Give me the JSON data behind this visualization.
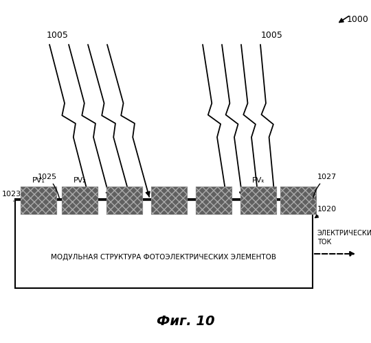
{
  "title": "Фиг. 10",
  "figure_label": "1000",
  "light_label": "1005",
  "label_1023": "1023",
  "label_1025": "1025",
  "label_1027": "1027",
  "label_1020": "1020",
  "pv1_label": "PV₁",
  "pv2_label": "PV₂",
  "pvk_label": "PVₖ",
  "module_text": "МОДУЛЬНАЯ СТРУКТУРА ФОТОЭЛЕКТРИЧЕСКИХ ЭЛЕМЕНТОВ",
  "electric_text1": "ЭЛЕКТРИЧЕСКИЙ",
  "electric_text2": "ТОК",
  "bg_color": "#ffffff",
  "line_color": "#000000",
  "pv_color": "#606060"
}
